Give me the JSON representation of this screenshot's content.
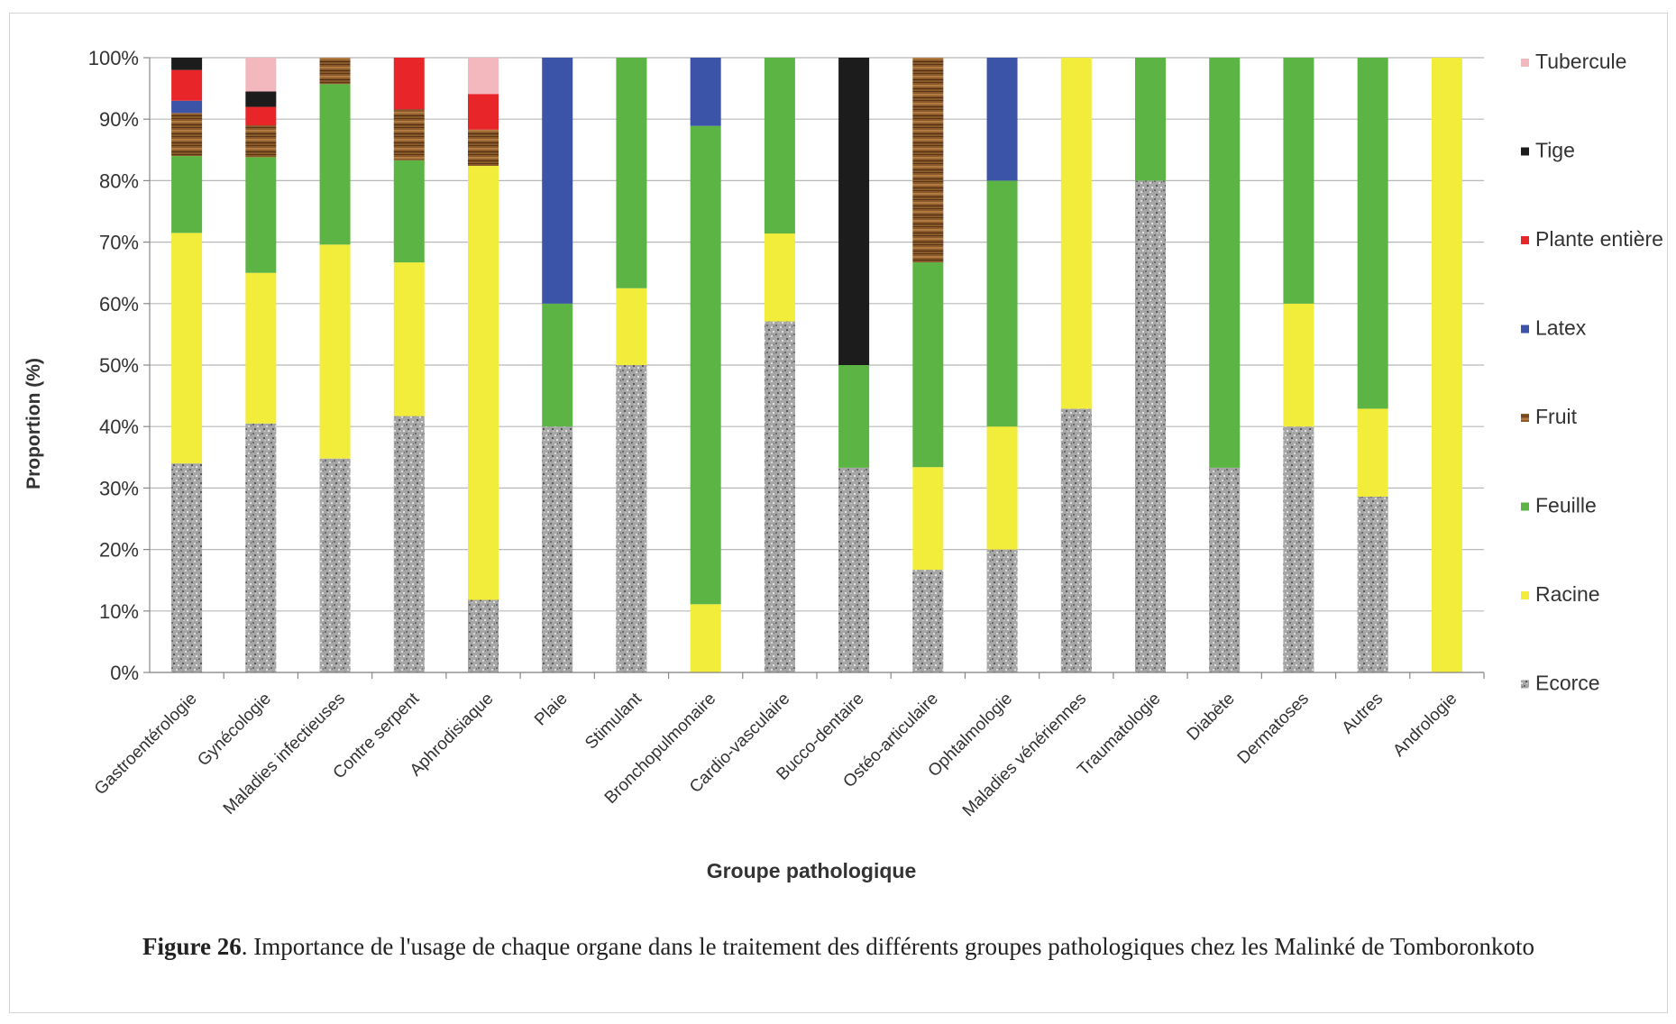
{
  "chart_data": {
    "type": "bar",
    "stacked": true,
    "normalized": true,
    "ylabel": "Proportion (%)",
    "xlabel": "Groupe pathologique",
    "ylim": [
      0,
      100
    ],
    "y_ticks": [
      "0%",
      "10%",
      "20%",
      "30%",
      "40%",
      "50%",
      "60%",
      "70%",
      "80%",
      "90%",
      "100%"
    ],
    "grid": "horizontal",
    "legend_position": "right",
    "categories": [
      "Gastroentérologie",
      "Gynécologie",
      "Maladies infectieuses",
      "Contre serpent",
      "Aphrodisiaque",
      "Plaie",
      "Stimulant",
      "Bronchopulmonaire",
      "Cardio-vasculaire",
      "Bucco-dentaire",
      "Ostéo-articulaire",
      "Ophtalmologie",
      "Maladies vénériennes",
      "Traumatologie",
      "Diabète",
      "Dermatoses",
      "Autres",
      "Andrologie"
    ],
    "series": [
      {
        "name": "Ecorce",
        "color": "#9a9a9a",
        "values": [
          34,
          40.5,
          34.8,
          41.7,
          11.8,
          40,
          50,
          0,
          57.1,
          33.3,
          16.7,
          20,
          42.9,
          80,
          33.3,
          40,
          28.6,
          0
        ]
      },
      {
        "name": "Racine",
        "color": "#f2ec3a",
        "values": [
          37.5,
          24.5,
          34.8,
          25,
          70.6,
          0,
          12.5,
          11.1,
          14.3,
          0,
          16.7,
          20,
          57.1,
          0,
          0,
          20,
          14.3,
          100
        ]
      },
      {
        "name": "Feuille",
        "color": "#5bb443",
        "values": [
          12.5,
          18.8,
          26.1,
          16.6,
          0,
          20,
          37.5,
          77.8,
          28.6,
          16.7,
          33.3,
          40,
          0,
          20,
          66.7,
          40,
          57.1,
          0
        ]
      },
      {
        "name": "Fruit",
        "color": "#8a5a2b",
        "values": [
          7,
          5.2,
          4.3,
          8.3,
          5.9,
          0,
          0,
          0,
          0,
          0,
          33.3,
          0,
          0,
          0,
          0,
          0,
          0,
          0
        ]
      },
      {
        "name": "Latex",
        "color": "#3b54a8",
        "values": [
          2,
          0,
          0,
          0,
          0,
          40,
          0,
          11.1,
          0,
          0,
          0,
          20,
          0,
          0,
          0,
          0,
          0,
          0
        ]
      },
      {
        "name": "Plante entière",
        "color": "#e8262a",
        "values": [
          5,
          3,
          0,
          8.4,
          5.8,
          0,
          0,
          0,
          0,
          0,
          0,
          0,
          0,
          0,
          0,
          0,
          0,
          0
        ]
      },
      {
        "name": "Tige",
        "color": "#1c1c1c",
        "values": [
          2,
          2.5,
          0,
          0,
          0,
          0,
          0,
          0,
          0,
          50,
          0,
          0,
          0,
          0,
          0,
          0,
          0,
          0
        ]
      },
      {
        "name": "Tubercule",
        "color": "#f2b8be",
        "values": [
          0,
          5.5,
          0,
          0,
          5.9,
          0,
          0,
          0,
          0,
          0,
          0,
          0,
          0,
          0,
          0,
          0,
          0,
          0
        ]
      }
    ],
    "legend_order": [
      "Tubercule",
      "Tige",
      "Plante entière",
      "Latex",
      "Fruit",
      "Feuille",
      "Racine",
      "Ecorce"
    ]
  },
  "caption": {
    "label": "Figure 26",
    "text": ". Importance de l'usage de chaque organe dans le traitement des différents groupes pathologiques chez les Malinké de Tomboronkoto"
  }
}
